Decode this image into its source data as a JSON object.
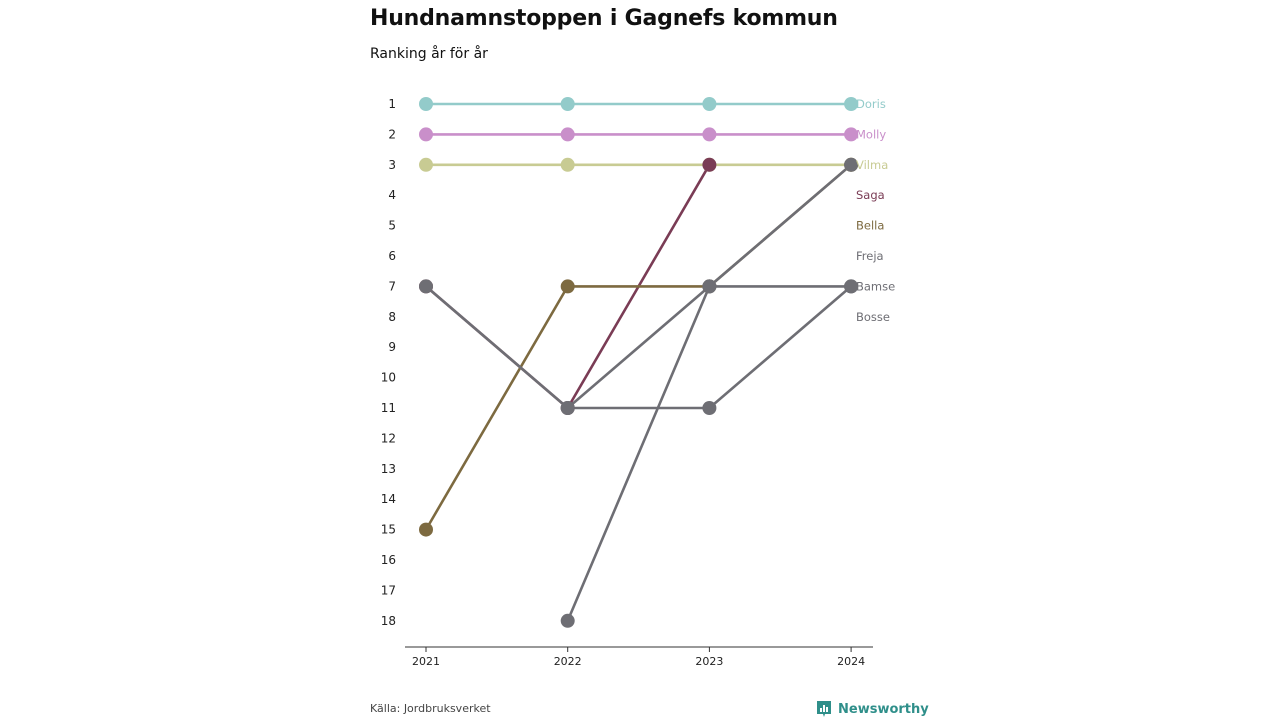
{
  "header": {
    "title": "Hundnamnstoppen i Gagnefs kommun",
    "subtitle": "Ranking år för år"
  },
  "footer": {
    "source": "Källa: Jordbruksverket",
    "brand": "Newsworthy",
    "brand_color": "#2f8f8a"
  },
  "chart_data": {
    "type": "line",
    "x": [
      "2021",
      "2022",
      "2023",
      "2024"
    ],
    "ylim": [
      1,
      18
    ],
    "y_ticks": [
      "1",
      "2",
      "3",
      "4",
      "5",
      "6",
      "7",
      "8",
      "9",
      "10",
      "11",
      "12",
      "13",
      "14",
      "15",
      "16",
      "17",
      "18"
    ],
    "y_inverted": true,
    "grid": false,
    "legend": "end-labels",
    "series": [
      {
        "name": "Doris",
        "color": "#93cbca",
        "values": [
          1,
          1,
          1,
          1
        ]
      },
      {
        "name": "Molly",
        "color": "#c98fca",
        "values": [
          2,
          2,
          2,
          2
        ]
      },
      {
        "name": "Vilma",
        "color": "#c8cb93",
        "values": [
          3,
          3,
          3,
          3
        ]
      },
      {
        "name": "Saga",
        "color": "#7a3c55",
        "values": [
          7,
          11,
          3,
          null
        ]
      },
      {
        "name": "Bella",
        "color": "#7d6a40",
        "values": [
          15,
          7,
          7,
          3
        ]
      },
      {
        "name": "Freja",
        "color": "#6e6e74",
        "values": [
          null,
          18,
          7,
          3
        ]
      },
      {
        "name": "Bamse",
        "color": "#6e6e74",
        "values": [
          null,
          11,
          11,
          7
        ]
      },
      {
        "name": "Bosse",
        "color": "#6e6e74",
        "values": [
          7,
          11,
          7,
          7
        ]
      }
    ]
  }
}
